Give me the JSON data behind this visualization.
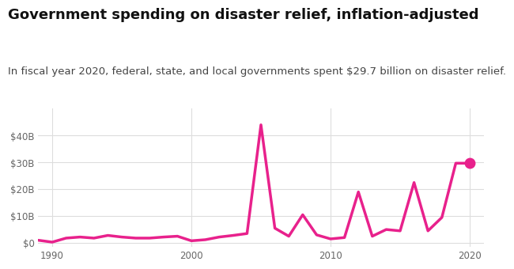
{
  "title": "Government spending on disaster relief, inflation-adjusted",
  "subtitle": "In fiscal year 2020, federal, state, and local governments spent $29.7 billion on disaster relief.",
  "line_color": "#e8218c",
  "marker_color": "#e8218c",
  "background_color": "#ffffff",
  "years": [
    1989,
    1990,
    1991,
    1992,
    1993,
    1994,
    1995,
    1996,
    1997,
    1998,
    1999,
    2000,
    2001,
    2002,
    2003,
    2004,
    2005,
    2006,
    2007,
    2008,
    2009,
    2010,
    2011,
    2012,
    2013,
    2014,
    2015,
    2016,
    2017,
    2018,
    2019,
    2020
  ],
  "values": [
    1.0,
    0.3,
    1.8,
    2.2,
    1.8,
    2.8,
    2.2,
    1.8,
    1.8,
    2.2,
    2.5,
    0.8,
    1.2,
    2.2,
    2.8,
    3.5,
    44.0,
    5.5,
    2.5,
    10.5,
    3.0,
    1.5,
    2.0,
    19.0,
    2.5,
    5.0,
    4.5,
    22.5,
    4.5,
    9.5,
    29.7,
    29.7
  ],
  "xlim": [
    1989,
    2021
  ],
  "ylim": [
    -1.5,
    50
  ],
  "yticks": [
    0,
    10,
    20,
    30,
    40
  ],
  "ytick_labels": [
    "$0",
    "$10B",
    "$20B",
    "$30B",
    "$40B"
  ],
  "xticks": [
    1990,
    2000,
    2010,
    2020
  ],
  "title_fontsize": 13,
  "subtitle_fontsize": 9.5,
  "tick_fontsize": 8.5,
  "linewidth": 2.5,
  "endpoint_marker_year": 2020,
  "endpoint_marker_value": 29.7,
  "grid_color": "#dddddd",
  "tick_color": "#666666"
}
